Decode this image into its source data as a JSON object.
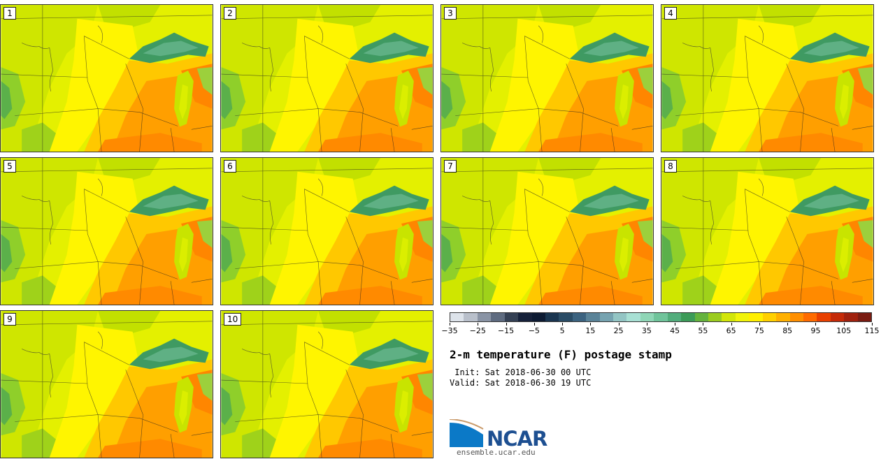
{
  "panels": [
    {
      "label": "1"
    },
    {
      "label": "2"
    },
    {
      "label": "3"
    },
    {
      "label": "4"
    },
    {
      "label": "5"
    },
    {
      "label": "6"
    },
    {
      "label": "7"
    },
    {
      "label": "8"
    },
    {
      "label": "9"
    },
    {
      "label": "10"
    }
  ],
  "colorbar": {
    "colors": [
      "#dde3ea",
      "#b9c0cb",
      "#8a94a5",
      "#5e6b80",
      "#344054",
      "#16213a",
      "#0d1b33",
      "#1a3550",
      "#2a4c66",
      "#3c6380",
      "#5a8398",
      "#76a3b0",
      "#93c5c4",
      "#a8e0d4",
      "#8fd6b6",
      "#70c49b",
      "#52ad7c",
      "#3c9b58",
      "#65b33d",
      "#9bcc1f",
      "#d2e609",
      "#f1f40a",
      "#ffef00",
      "#ffd000",
      "#ffb000",
      "#ff8f00",
      "#ff6b00",
      "#e94000",
      "#c52a08",
      "#a0210e",
      "#7a1c12"
    ],
    "tick_labels": [
      "−35",
      "−25",
      "−15",
      "−5",
      "5",
      "15",
      "25",
      "35",
      "45",
      "55",
      "65",
      "75",
      "85",
      "95",
      "105",
      "115"
    ]
  },
  "title": "2-m temperature (F) postage stamp",
  "init": " Init: Sat 2018-06-30 00 UTC",
  "valid": "Valid: Sat 2018-06-30 19 UTC",
  "logo": {
    "text": "NCAR",
    "site": "ensemble.ucar.edu",
    "brand_color": "#1d4f91"
  }
}
